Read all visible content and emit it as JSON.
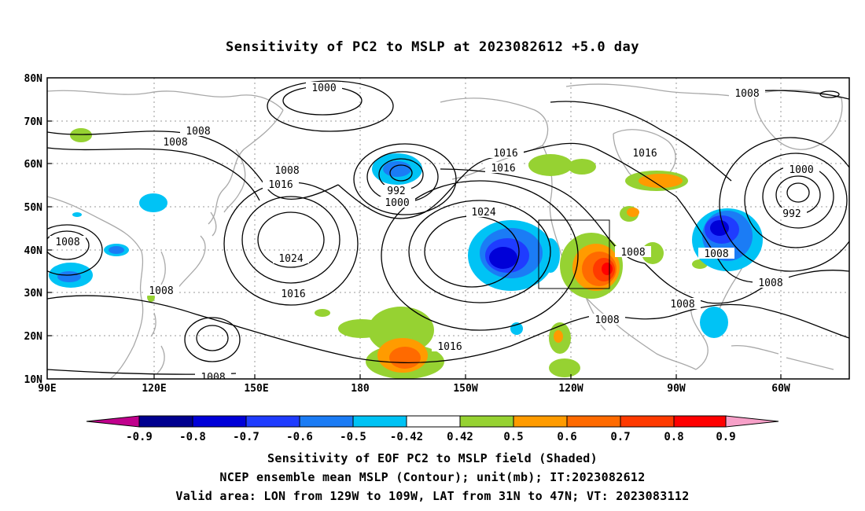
{
  "title": "Sensitivity of PC2 to MSLP at 2023082612 +5.0 day",
  "map": {
    "lon_range": [
      "90E",
      "50W"
    ],
    "lat_range": [
      "10N",
      "80N"
    ],
    "lat_labels": [
      "10N",
      "20N",
      "30N",
      "40N",
      "50N",
      "60N",
      "70N",
      "80N"
    ],
    "lon_labels": [
      "90E",
      "120E",
      "150E",
      "180",
      "150W",
      "120W",
      "90W",
      "60W"
    ],
    "gridlines": "dotted",
    "valid_box": {
      "lon_from": "129W",
      "lon_to": "109W",
      "lat_from": "31N",
      "lat_to": "47N"
    }
  },
  "contour_labels": [
    "1000",
    "1008",
    "1016",
    "1008",
    "1008",
    "1016",
    "992",
    "1000",
    "1024",
    "1008",
    "1016",
    "1008",
    "1008",
    "1016",
    "1024",
    "1016",
    "1016",
    "1008",
    "1008",
    "1008",
    "1016",
    "1008",
    "1000",
    "992",
    "1008",
    "1008"
  ],
  "colorbar": {
    "labels": [
      "-0.9",
      "-0.8",
      "-0.7",
      "-0.6",
      "-0.5",
      "-0.42",
      "0.42",
      "0.5",
      "0.6",
      "0.7",
      "0.8",
      "0.9"
    ],
    "colors": [
      "#c0008c",
      "#00008f",
      "#0000d8",
      "#1f3cff",
      "#1b7cf5",
      "#00c3f5",
      "#ffffff",
      "#96d232",
      "#ff9b00",
      "#ff6a00",
      "#ff3a00",
      "#ff0000",
      "#f7a0c8"
    ]
  },
  "captions": [
    "Sensitivity of EOF PC2 to MSLP field (Shaded)",
    "NCEP ensemble mean MSLP (Contour); unit(mb); IT:2023082612",
    "Valid area: LON from 129W to 109W, LAT from 31N to 47N; VT: 2023083112"
  ]
}
